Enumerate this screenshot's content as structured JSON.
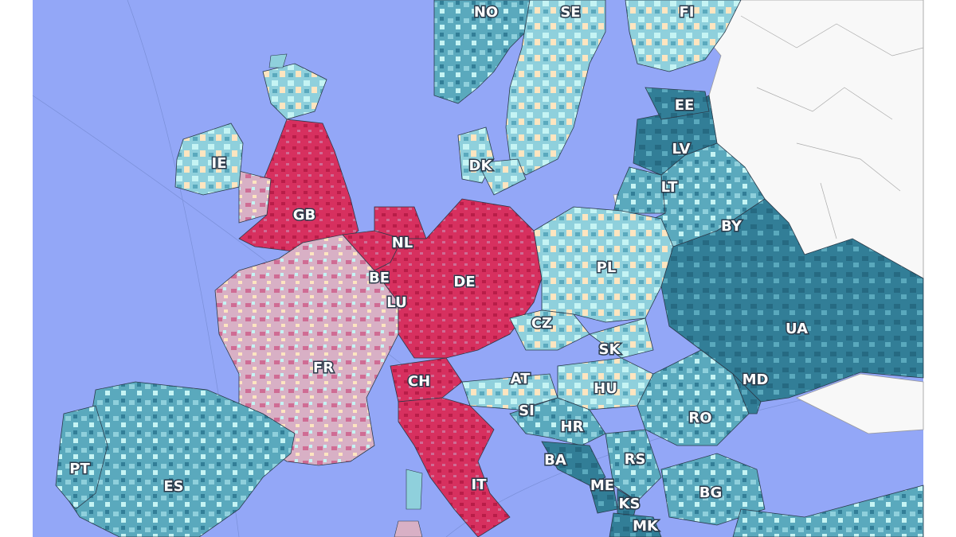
{
  "map": {
    "colors": {
      "sea": "#93a7f7",
      "outside": "#ffffff",
      "non_data_land": "#f8f8f8",
      "pink_light": "#d8b0c5",
      "pink_mid": "#cf6c94",
      "crimson": "#d7305f",
      "crimson_dark": "#b81d48",
      "cream": "#fde5c0",
      "cyan_light": "#c5f4f4",
      "teal_light": "#8fd0dc",
      "teal_mid": "#5aa9bd",
      "teal_dark": "#327e97",
      "teal_deep": "#266a82",
      "border": "#3c3c46"
    },
    "country_labels": [
      {
        "code": "NO"
      },
      {
        "code": "SE"
      },
      {
        "code": "FI"
      },
      {
        "code": "EE"
      },
      {
        "code": "LV"
      },
      {
        "code": "LT"
      },
      {
        "code": "DK"
      },
      {
        "code": "IE"
      },
      {
        "code": "GB"
      },
      {
        "code": "NL"
      },
      {
        "code": "BE"
      },
      {
        "code": "LU"
      },
      {
        "code": "DE"
      },
      {
        "code": "PL"
      },
      {
        "code": "BY"
      },
      {
        "code": "CZ"
      },
      {
        "code": "SK"
      },
      {
        "code": "UA"
      },
      {
        "code": "FR"
      },
      {
        "code": "CH"
      },
      {
        "code": "AT"
      },
      {
        "code": "HU"
      },
      {
        "code": "MD"
      },
      {
        "code": "SI"
      },
      {
        "code": "HR"
      },
      {
        "code": "RO"
      },
      {
        "code": "PT"
      },
      {
        "code": "ES"
      },
      {
        "code": "BA"
      },
      {
        "code": "RS"
      },
      {
        "code": "IT"
      },
      {
        "code": "ME"
      },
      {
        "code": "BG"
      },
      {
        "code": "KS"
      },
      {
        "code": "MK"
      }
    ]
  }
}
